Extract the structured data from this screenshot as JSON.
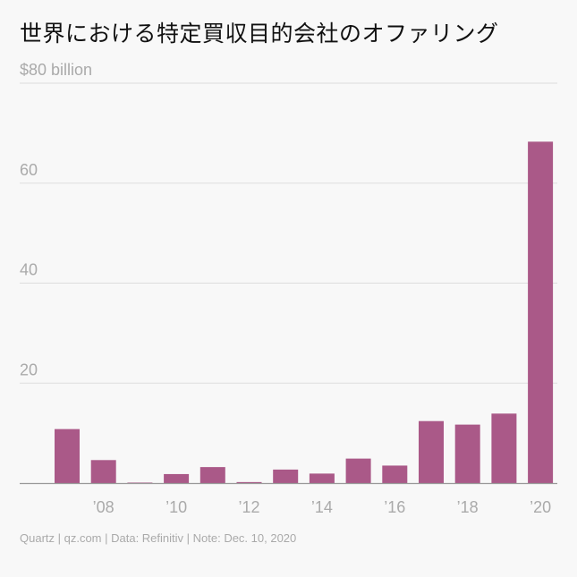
{
  "title": "世界における特定買収目的会社のオファリング",
  "footer": "Quartz | qz.com | Data: Refinitiv | Note: Dec. 10, 2020",
  "colors": {
    "bar": "#aa5988",
    "grid": "#dddddd",
    "axis": "#999999",
    "tick_text": "#aaaaaa"
  },
  "chart_data": {
    "type": "bar",
    "title": "世界における特定買収目的会社のオファリング",
    "categories": [
      "2007",
      "2008",
      "2009",
      "2010",
      "2011",
      "2012",
      "2013",
      "2014",
      "2015",
      "2016",
      "2017",
      "2018",
      "2019",
      "2020"
    ],
    "values": [
      10.8,
      4.6,
      0.1,
      1.8,
      3.2,
      0.2,
      2.7,
      1.9,
      4.9,
      3.5,
      12.4,
      11.7,
      13.9,
      68.3
    ],
    "ylim": [
      0,
      80
    ],
    "yticks": [
      0,
      20,
      40,
      60,
      80
    ],
    "ytick_labels": [
      "",
      "20",
      "40",
      "60",
      "$80 billion"
    ],
    "xtick_labels": [
      "",
      "’08",
      "",
      "’10",
      "",
      "’12",
      "",
      "’14",
      "",
      "’16",
      "",
      "’18",
      "",
      "’20"
    ],
    "xlabel": "",
    "ylabel": "",
    "grid": true
  }
}
